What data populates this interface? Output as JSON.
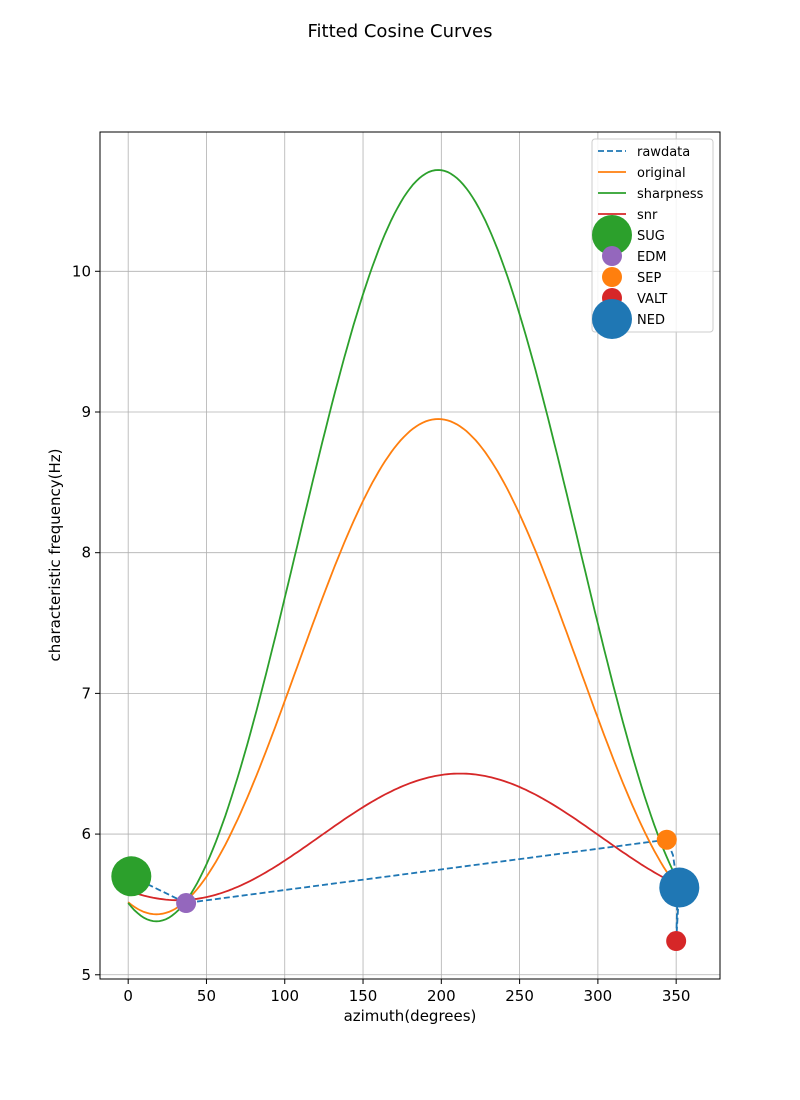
{
  "chart_data": {
    "type": "line",
    "title": "Fitted Cosine Curves",
    "xlabel": "azimuth(degrees)",
    "ylabel": "characteristic frequency(Hz)",
    "xlim": [
      -18,
      378
    ],
    "ylim": [
      4.97,
      10.99
    ],
    "xticks": [
      0,
      50,
      100,
      150,
      200,
      250,
      300,
      350
    ],
    "yticks": [
      5,
      6,
      7,
      8,
      9,
      10
    ],
    "grid": true,
    "legend_position": "top-right",
    "lines": [
      {
        "name": "rawdata",
        "color": "#1f77b4",
        "style": "dashed",
        "x": [
          2,
          37,
          344,
          348,
          351,
          350,
          352
        ],
        "y": [
          5.7,
          5.51,
          5.96,
          5.85,
          5.62,
          5.24,
          5.62
        ]
      },
      {
        "name": "original",
        "color": "#ff7f0e",
        "style": "solid",
        "fit": {
          "offset": 7.19,
          "amplitude": 1.76,
          "phase_deg": 198
        },
        "x_range": [
          0,
          360
        ]
      },
      {
        "name": "sharpness",
        "color": "#2ca02c",
        "style": "solid",
        "fit": {
          "offset": 8.05,
          "amplitude": 2.67,
          "phase_deg": 198
        },
        "x_range": [
          0,
          360
        ]
      },
      {
        "name": "snr",
        "color": "#d62728",
        "style": "solid",
        "fit": {
          "offset": 5.98,
          "amplitude": 0.45,
          "phase_deg": 212
        },
        "x_range": [
          0,
          360
        ]
      }
    ],
    "stations": [
      {
        "name": "SUG",
        "x": 2,
        "y": 5.7,
        "color": "#2ca02c",
        "size": "large"
      },
      {
        "name": "EDM",
        "x": 37,
        "y": 5.51,
        "color": "#9467bd",
        "size": "small"
      },
      {
        "name": "SEP",
        "x": 344,
        "y": 5.96,
        "color": "#ff7f0e",
        "size": "small"
      },
      {
        "name": "VALT",
        "x": 350,
        "y": 5.24,
        "color": "#d62728",
        "size": "small"
      },
      {
        "name": "NED",
        "x": 352,
        "y": 5.62,
        "color": "#1f77b4",
        "size": "large"
      }
    ],
    "legend": [
      "rawdata",
      "original",
      "sharpness",
      "snr",
      "SUG",
      "EDM",
      "SEP",
      "VALT",
      "NED"
    ]
  }
}
